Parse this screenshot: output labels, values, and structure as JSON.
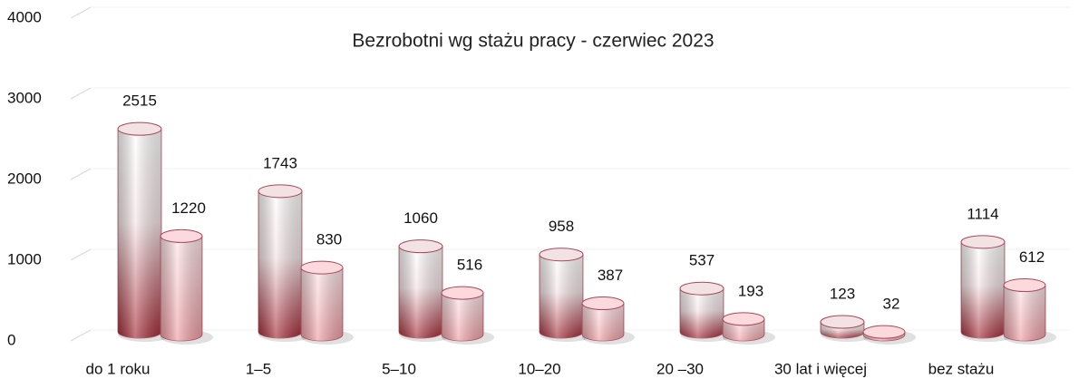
{
  "chart_data": {
    "type": "bar",
    "title": "Bezrobotni wg stażu pracy  - czerwiec 2023",
    "categories": [
      "do 1 roku",
      "1–5",
      "5–10",
      "10–20",
      "20 –30",
      "30 lat i więcej",
      "bez stażu"
    ],
    "series": [
      {
        "color": "#a52a36",
        "values": [
          2515,
          1743,
          1060,
          958,
          537,
          123,
          1114
        ]
      },
      {
        "color": "#ef9ea4",
        "values": [
          1220,
          830,
          516,
          387,
          193,
          32,
          612
        ]
      }
    ],
    "ylim": [
      0,
      4000
    ],
    "yticks": [
      0,
      1000,
      2000,
      3000,
      4000
    ],
    "grid": true
  }
}
